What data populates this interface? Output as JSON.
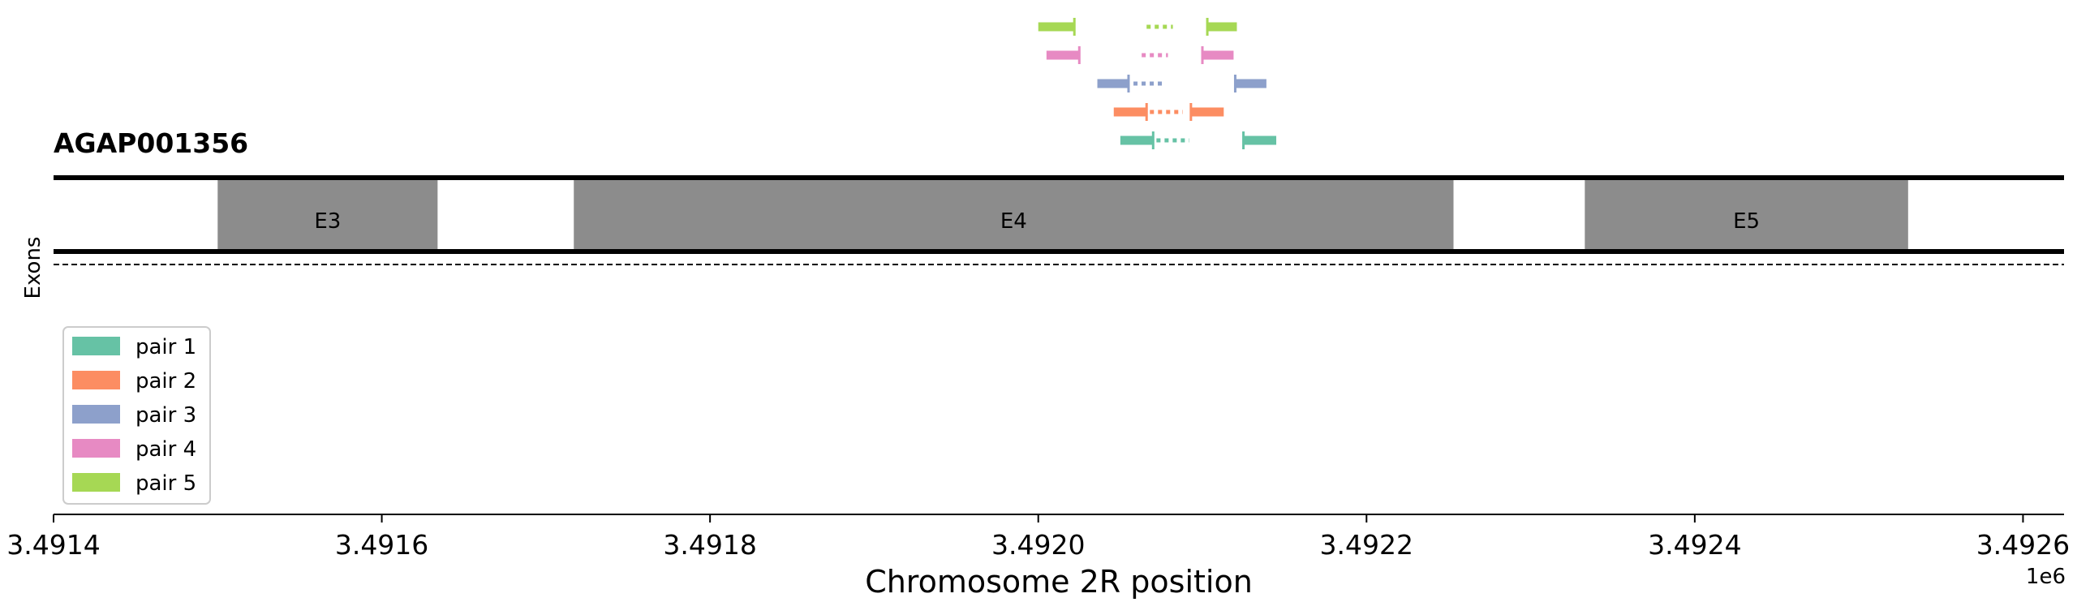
{
  "chart_data": {
    "type": "gene-track",
    "title": "AGAP001356",
    "track_label": "Exons",
    "xlabel": "Chromosome 2R position",
    "x_offset_label": "1e6",
    "xlim": [
      3491400,
      3492625
    ],
    "x_ticks": [
      3491400,
      3491600,
      3491800,
      3492000,
      3492200,
      3492400,
      3492600
    ],
    "x_tick_labels": [
      "3.4914",
      "3.4916",
      "3.4918",
      "3.4920",
      "3.4922",
      "3.4924",
      "3.4926"
    ],
    "exons": [
      {
        "label": "E3",
        "start": 3491500,
        "end": 3491634
      },
      {
        "label": "E4",
        "start": 3491717,
        "end": 3492253
      },
      {
        "label": "E5",
        "start": 3492333,
        "end": 3492530
      }
    ],
    "primer_pairs": [
      {
        "name": "pair 1",
        "color": "#66c2a5",
        "forward": [
          3492050,
          3492070
        ],
        "probe": [
          3492072,
          3492092
        ],
        "reverse": [
          3492125,
          3492145
        ]
      },
      {
        "name": "pair 2",
        "color": "#fc8d62",
        "forward": [
          3492046,
          3492066
        ],
        "probe": [
          3492068,
          3492088
        ],
        "reverse": [
          3492093,
          3492113
        ]
      },
      {
        "name": "pair 3",
        "color": "#8da0cb",
        "forward": [
          3492036,
          3492055
        ],
        "probe": [
          3492058,
          3492076
        ],
        "reverse": [
          3492120,
          3492139
        ]
      },
      {
        "name": "pair 4",
        "color": "#e78ac3",
        "forward": [
          3492005,
          3492025
        ],
        "probe": [
          3492063,
          3492079
        ],
        "reverse": [
          3492100,
          3492119
        ]
      },
      {
        "name": "pair 5",
        "color": "#a6d854",
        "forward": [
          3492000,
          3492022
        ],
        "probe": [
          3492066,
          3492082
        ],
        "reverse": [
          3492103,
          3492121
        ]
      }
    ],
    "legend": [
      "pair 1",
      "pair 2",
      "pair 3",
      "pair 4",
      "pair 5"
    ],
    "legend_position": "lower-left",
    "exon_color": "#8c8c8c"
  }
}
